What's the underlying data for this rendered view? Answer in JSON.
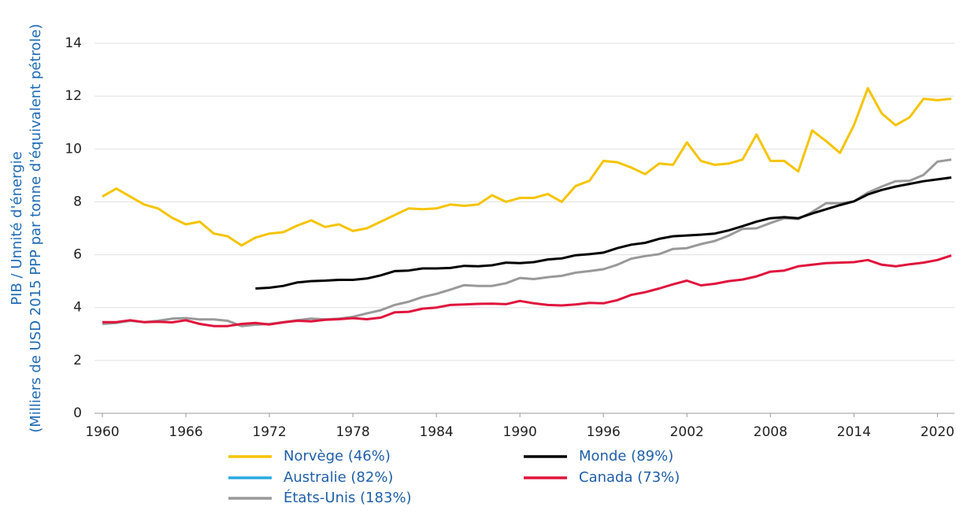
{
  "chart_data": {
    "type": "line",
    "y_label": [
      "PIB / Unnité d'énergie",
      "(Milliers de USD 2015 PPP par tonne d'équivalent pétrole)"
    ],
    "x": [
      1960,
      1961,
      1962,
      1963,
      1964,
      1965,
      1966,
      1967,
      1968,
      1969,
      1970,
      1971,
      1972,
      1973,
      1974,
      1975,
      1976,
      1977,
      1978,
      1979,
      1980,
      1981,
      1982,
      1983,
      1984,
      1985,
      1986,
      1987,
      1988,
      1989,
      1990,
      1991,
      1992,
      1993,
      1994,
      1995,
      1996,
      1997,
      1998,
      1999,
      2000,
      2001,
      2002,
      2003,
      2004,
      2005,
      2006,
      2007,
      2008,
      2009,
      2010,
      2011,
      2012,
      2013,
      2014,
      2015,
      2016,
      2017,
      2018,
      2019,
      2020,
      2021
    ],
    "series": [
      {
        "name": "Norvège (46%)",
        "color": "#f5c400",
        "values": [
          8.2,
          8.5,
          8.2,
          7.9,
          7.75,
          7.4,
          7.15,
          7.25,
          6.8,
          6.7,
          6.35,
          6.65,
          6.8,
          6.85,
          7.1,
          7.3,
          7.05,
          7.15,
          6.9,
          7.0,
          7.25,
          7.5,
          7.75,
          7.72,
          7.75,
          7.9,
          7.85,
          7.9,
          8.25,
          8.0,
          8.15,
          8.15,
          8.3,
          8.0,
          8.6,
          8.8,
          9.55,
          9.5,
          9.3,
          9.05,
          9.45,
          9.4,
          10.25,
          9.55,
          9.4,
          9.45,
          9.6,
          10.55,
          9.55,
          9.55,
          9.15,
          10.7,
          10.3,
          9.85,
          10.9,
          12.3,
          11.35,
          10.9,
          11.2,
          11.9,
          11.85,
          11.9
        ]
      },
      {
        "name": "Monde (89%)",
        "color": "#000000",
        "values": [
          null,
          null,
          null,
          null,
          null,
          null,
          null,
          null,
          null,
          null,
          null,
          4.72,
          4.75,
          4.82,
          4.95,
          5.0,
          5.02,
          5.05,
          5.05,
          5.1,
          5.22,
          5.38,
          5.4,
          5.48,
          5.48,
          5.5,
          5.58,
          5.56,
          5.6,
          5.7,
          5.68,
          5.72,
          5.82,
          5.86,
          5.98,
          6.02,
          6.08,
          6.25,
          6.38,
          6.45,
          6.6,
          6.7,
          6.73,
          6.76,
          6.8,
          6.92,
          7.08,
          7.25,
          7.38,
          7.42,
          7.38,
          7.56,
          7.72,
          7.88,
          8.02,
          8.28,
          8.45,
          8.58,
          8.68,
          8.78,
          8.85,
          8.92
        ]
      },
      {
        "name": "Australie (82%)",
        "color": "#29a9e0",
        "values": [
          null,
          null,
          null,
          null,
          null,
          null,
          null,
          null,
          null,
          null,
          null,
          null,
          null,
          null,
          null,
          null,
          null,
          null,
          null,
          null,
          null,
          null,
          null,
          null,
          null,
          null,
          null,
          null,
          null,
          null,
          null,
          null,
          null,
          null,
          null,
          null,
          null,
          null,
          null,
          null,
          null,
          null,
          null,
          null,
          null,
          null,
          null,
          null,
          null,
          null,
          null,
          null,
          null,
          null,
          null,
          null,
          null,
          null,
          null,
          null,
          null,
          null
        ]
      },
      {
        "name": "Canada (73%)",
        "color": "#e0133c",
        "values": [
          3.45,
          3.45,
          3.52,
          3.45,
          3.46,
          3.44,
          3.52,
          3.38,
          3.3,
          3.3,
          3.38,
          3.42,
          3.36,
          3.44,
          3.5,
          3.48,
          3.54,
          3.56,
          3.6,
          3.56,
          3.62,
          3.82,
          3.84,
          3.96,
          4.0,
          4.1,
          4.12,
          4.14,
          4.15,
          4.13,
          4.25,
          4.16,
          4.1,
          4.08,
          4.12,
          4.18,
          4.16,
          4.28,
          4.48,
          4.58,
          4.72,
          4.88,
          5.02,
          4.84,
          4.9,
          5.0,
          5.06,
          5.18,
          5.36,
          5.4,
          5.56,
          5.62,
          5.68,
          5.7,
          5.72,
          5.8,
          5.62,
          5.56,
          5.64,
          5.7,
          5.8,
          5.97
        ]
      },
      {
        "name": "États-Unis (183%)",
        "color": "#999999",
        "values": [
          3.38,
          3.42,
          3.5,
          3.45,
          3.5,
          3.58,
          3.6,
          3.55,
          3.55,
          3.5,
          3.3,
          3.35,
          3.38,
          3.45,
          3.52,
          3.58,
          3.55,
          3.58,
          3.65,
          3.78,
          3.9,
          4.1,
          4.22,
          4.4,
          4.52,
          4.68,
          4.85,
          4.82,
          4.82,
          4.92,
          5.12,
          5.08,
          5.15,
          5.2,
          5.32,
          5.38,
          5.45,
          5.62,
          5.85,
          5.95,
          6.02,
          6.22,
          6.25,
          6.4,
          6.52,
          6.72,
          6.98,
          7.0,
          7.2,
          7.38,
          7.35,
          7.62,
          7.95,
          7.95,
          8.02,
          8.35,
          8.58,
          8.78,
          8.8,
          9.02,
          9.52,
          9.6
        ]
      }
    ],
    "xlim": [
      1960,
      2021
    ],
    "xticks": [
      1960,
      1966,
      1972,
      1978,
      1984,
      1990,
      1996,
      2002,
      2008,
      2014,
      2020
    ],
    "ylim": [
      0,
      14
    ],
    "yticks": [
      0,
      2,
      4,
      6,
      8,
      10,
      12,
      14
    ],
    "grid": true
  }
}
